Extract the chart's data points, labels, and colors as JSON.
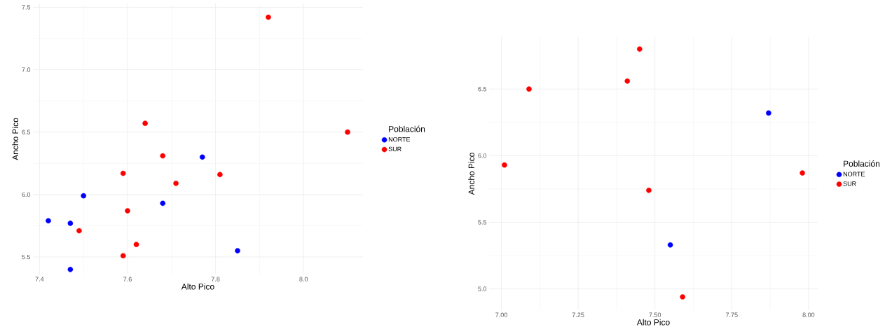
{
  "chart_data": [
    {
      "type": "scatter",
      "xlabel": "Alto Pico",
      "ylabel": "Ancho Pico",
      "legend_title": "Población",
      "legend": "right",
      "grid": true,
      "xlim": [
        7.385,
        8.135
      ],
      "ylim": [
        5.36,
        7.53
      ],
      "xticks": [
        7.4,
        7.6,
        7.8,
        {
          "value": 8,
          "label": "8.0"
        }
      ],
      "yticks": [
        5.5,
        {
          "value": 6,
          "label": "6.0"
        },
        6.5,
        {
          "value": 7,
          "label": "7.0"
        },
        7.5
      ],
      "series": [
        {
          "name": "NORTE",
          "color": "#0000ff",
          "x": [
            7.42,
            7.47,
            7.5,
            7.47,
            7.68,
            7.77,
            7.85
          ],
          "values": [
            5.79,
            5.77,
            5.99,
            5.4,
            5.93,
            6.3,
            5.55
          ]
        },
        {
          "name": "SUR",
          "color": "#ff0000",
          "x": [
            7.92,
            8.1,
            7.64,
            7.68,
            7.59,
            7.81,
            7.71,
            7.6,
            7.49,
            7.62,
            7.59
          ],
          "values": [
            7.42,
            6.5,
            6.57,
            6.31,
            6.17,
            6.16,
            6.09,
            5.87,
            5.71,
            5.6,
            5.51
          ]
        }
      ]
    },
    {
      "type": "scatter",
      "xlabel": "Alto Pico",
      "ylabel": "Ancho Pico",
      "legend_title": "Población",
      "legend": "right",
      "grid": true,
      "xlim": [
        6.96,
        8.03
      ],
      "ylim": [
        4.84,
        6.89
      ],
      "xticks": [
        {
          "value": 7,
          "label": "7.00"
        },
        7.25,
        {
          "value": 7.5,
          "label": "7.50"
        },
        7.75,
        {
          "value": 8,
          "label": "8.00"
        }
      ],
      "yticks": [
        {
          "value": 5,
          "label": "5.0"
        },
        5.5,
        {
          "value": 6,
          "label": "6.0"
        },
        6.5
      ],
      "series": [
        {
          "name": "NORTE",
          "color": "#0000ff",
          "x": [
            7.87,
            7.55
          ],
          "values": [
            6.32,
            5.33
          ]
        },
        {
          "name": "SUR",
          "color": "#ff0000",
          "x": [
            7.01,
            7.09,
            7.41,
            7.45,
            7.48,
            7.59,
            7.98
          ],
          "values": [
            5.93,
            6.5,
            6.56,
            6.8,
            5.74,
            4.94,
            5.87
          ]
        }
      ]
    }
  ]
}
